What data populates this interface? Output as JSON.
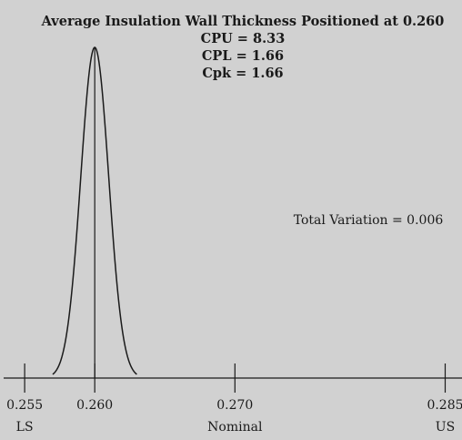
{
  "chart_data": {
    "type": "line",
    "title": "Average Insulation Wall Thickness Positioned at 0.260",
    "stats": [
      {
        "label": "CPU = 8.33"
      },
      {
        "label": "CPL = 1.66"
      },
      {
        "label": "Cpk = 1.66"
      }
    ],
    "annotation": "Total Variation = 0.006",
    "distribution": {
      "mean": 0.26,
      "total_variation": 0.006,
      "x_min": 0.257,
      "x_max": 0.263
    },
    "xlim": [
      0.2535,
      0.2862
    ],
    "ticks": [
      {
        "value": 0.255,
        "label": "0.255",
        "sublabel": "LS"
      },
      {
        "value": 0.26,
        "label": "0.260",
        "sublabel": ""
      },
      {
        "value": 0.27,
        "label": "0.270",
        "sublabel": "Nominal"
      },
      {
        "value": 0.285,
        "label": "0.285",
        "sublabel": "US"
      }
    ],
    "grid": false,
    "colors": {
      "background": "#d1d1d1",
      "line": "#1a1a1a",
      "text": "#1a1a1a"
    }
  }
}
